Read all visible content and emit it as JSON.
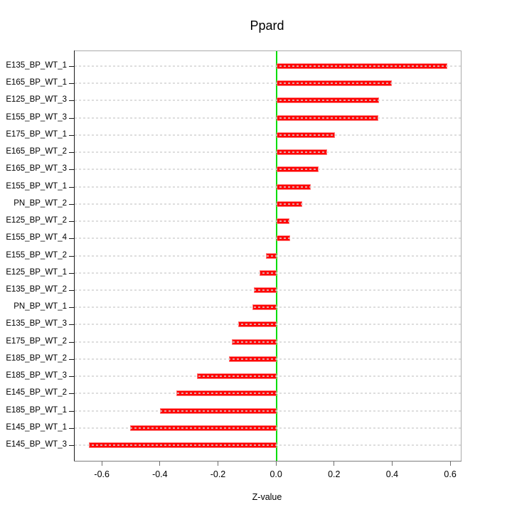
{
  "chart_data": {
    "type": "bar",
    "orientation": "horizontal",
    "title": "Ppard",
    "xlabel": "Z-value",
    "categories": [
      "E135_BP_WT_1",
      "E165_BP_WT_1",
      "E125_BP_WT_3",
      "E155_BP_WT_3",
      "E175_BP_WT_1",
      "E165_BP_WT_2",
      "E165_BP_WT_3",
      "E155_BP_WT_1",
      "PN_BP_WT_2",
      "E125_BP_WT_2",
      "E155_BP_WT_4",
      "E155_BP_WT_2",
      "E125_BP_WT_1",
      "E135_BP_WT_2",
      "PN_BP_WT_1",
      "E135_BP_WT_3",
      "E175_BP_WT_2",
      "E185_BP_WT_2",
      "E185_BP_WT_3",
      "E145_BP_WT_2",
      "E185_BP_WT_1",
      "E145_BP_WT_1",
      "E145_BP_WT_3"
    ],
    "values": [
      0.588,
      0.396,
      0.352,
      0.349,
      0.2,
      0.174,
      0.145,
      0.118,
      0.089,
      0.044,
      0.046,
      -0.038,
      -0.058,
      -0.078,
      -0.083,
      -0.132,
      -0.154,
      -0.164,
      -0.274,
      -0.345,
      -0.402,
      -0.505,
      -0.648
    ],
    "xticks": [
      -0.6,
      -0.4,
      -0.2,
      0.0,
      0.2,
      0.4,
      0.6
    ],
    "xtick_labels": [
      "-0.6",
      "-0.4",
      "-0.2",
      "0.0",
      "0.2",
      "0.4",
      "0.6"
    ],
    "xlim": [
      -0.696,
      0.634
    ],
    "grid": true,
    "legend": "none",
    "colors": {
      "bar": "#ff0000",
      "zero_line": "#00dd00",
      "grid_line": "#d5d5d5",
      "box": "#ababab",
      "y_axis": "#1a1a1a",
      "x_axis": "#7d7d7d"
    }
  }
}
